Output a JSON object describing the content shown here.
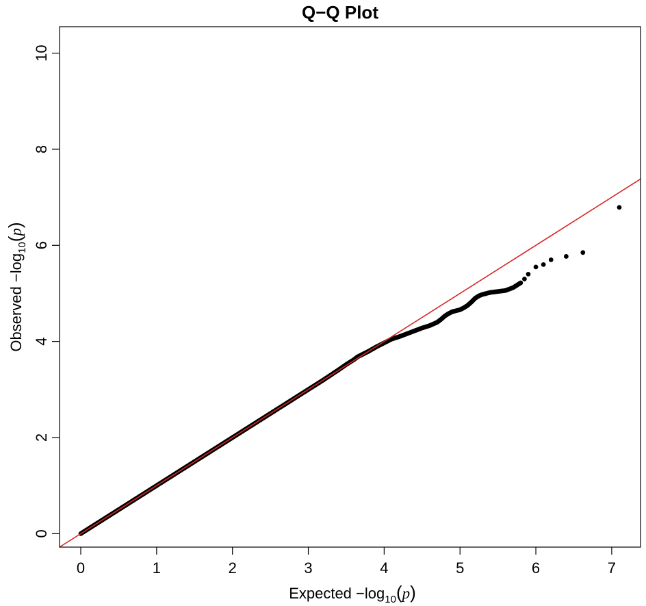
{
  "chart_data": {
    "type": "scatter",
    "title": "Q−Q Plot",
    "xlabel": {
      "prefix": "Expected",
      "minus": "−",
      "log": "log",
      "base": "10",
      "open": "(",
      "var": "p",
      "close": ")"
    },
    "ylabel": {
      "prefix": "Observed",
      "minus": "−",
      "log": "log",
      "base": "10",
      "open": "(",
      "var": "p",
      "close": ")"
    },
    "xlim": [
      -0.28,
      7.38
    ],
    "ylim": [
      -0.28,
      10.55
    ],
    "x_ticks": [
      0,
      1,
      2,
      3,
      4,
      5,
      6,
      7
    ],
    "y_ticks": [
      0,
      2,
      4,
      6,
      8,
      10
    ],
    "reference_line": {
      "intercept": 0,
      "slope": 1,
      "color": "#d62728"
    },
    "point_color": "#000000",
    "series": [
      {
        "x": [
          0,
          0.5,
          1,
          1.5,
          2,
          2.5,
          2.8,
          3.0,
          3.2,
          3.4,
          3.5,
          3.6,
          3.65,
          3.7,
          3.8,
          3.9,
          4.0,
          4.1,
          4.2,
          4.3,
          4.4,
          4.5,
          4.6,
          4.7,
          4.75,
          4.8,
          4.85,
          4.9,
          4.95,
          5.0,
          5.05,
          5.1,
          5.15,
          5.2,
          5.25,
          5.3,
          5.4,
          5.5,
          5.6,
          5.65,
          5.7,
          5.75,
          5.8,
          5.85,
          5.9,
          6.0,
          6.1,
          6.2,
          6.4,
          6.62,
          7.1
        ],
        "y": [
          0,
          0.5,
          1,
          1.5,
          2,
          2.5,
          2.8,
          3.0,
          3.2,
          3.41,
          3.52,
          3.62,
          3.68,
          3.72,
          3.8,
          3.89,
          3.97,
          4.05,
          4.1,
          4.16,
          4.22,
          4.28,
          4.33,
          4.4,
          4.46,
          4.53,
          4.58,
          4.62,
          4.64,
          4.66,
          4.7,
          4.75,
          4.82,
          4.9,
          4.95,
          4.98,
          5.02,
          5.04,
          5.06,
          5.09,
          5.12,
          5.17,
          5.22,
          5.3,
          5.4,
          5.55,
          5.6,
          5.7,
          5.77,
          5.85,
          6.79
        ]
      }
    ]
  }
}
